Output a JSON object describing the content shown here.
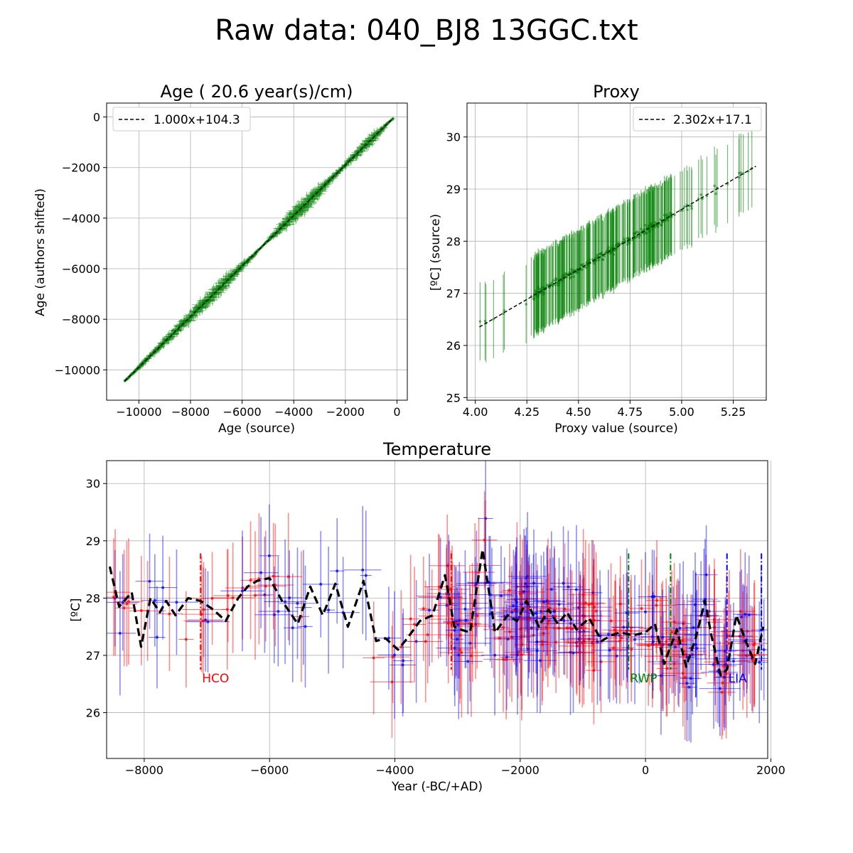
{
  "title": "Raw data: 040_BJ8 13GGC.txt",
  "colors": {
    "age": "#008000",
    "proxy": "#008000",
    "fit": "#000000",
    "temp_a": "#ff0000",
    "temp_b": "#0000ff",
    "hco": "#ff0000",
    "rwp": "#008000",
    "lia": "#0000ff"
  },
  "chart_data": [
    {
      "type": "scatter",
      "title": "Age ( 20.6 year(s)/cm)",
      "xlabel": "Age (source)",
      "ylabel": "Age (authors shifted)",
      "xlim": [
        -11250,
        400
      ],
      "ylim": [
        -11200,
        550
      ],
      "xticks": [
        "-10000",
        "-8000",
        "-6000",
        "-4000",
        "-2000",
        "0"
      ],
      "yticks": [
        "0",
        "-2000",
        "-4000",
        "-6000",
        "-8000",
        "-10000"
      ],
      "legend": "1.000x+104.3",
      "legend_position": "top-left",
      "grid": true,
      "fit": {
        "slope": 1.0,
        "intercept": 104.3
      },
      "series": [
        {
          "x_range": [
            -10550,
            -150
          ],
          "spread_points": [
            [
              -10550,
              80
            ],
            [
              -8600,
              280
            ],
            [
              -6800,
              380
            ],
            [
              -5200,
              60
            ],
            [
              -3800,
              450
            ],
            [
              -2200,
              150
            ],
            [
              -1000,
              300
            ],
            [
              -150,
              50
            ]
          ]
        }
      ]
    },
    {
      "type": "scatter",
      "title": "Proxy",
      "xlabel": "Proxy value (source)",
      "ylabel": "[ºC] (source)",
      "xlim": [
        3.96,
        5.41
      ],
      "ylim": [
        24.95,
        30.65
      ],
      "xticks": [
        "4.00",
        "4.25",
        "4.50",
        "4.75",
        "5.00",
        "5.25"
      ],
      "yticks": [
        "25",
        "26",
        "27",
        "28",
        "29",
        "30"
      ],
      "legend": "2.302x+17.1",
      "legend_position": "top-right",
      "grid": true,
      "fit": {
        "slope": 2.302,
        "intercept": 17.1
      },
      "error_half_width": 0.75,
      "x_range": [
        4.02,
        5.36
      ]
    },
    {
      "type": "line",
      "title": "Temperature",
      "xlabel": "Year (-BC/+AD)",
      "ylabel": "[ºC]",
      "xlim": [
        -8600,
        1950
      ],
      "ylim": [
        25.2,
        30.4
      ],
      "xticks": [
        "-8000",
        "-6000",
        "-4000",
        "-2000",
        "0",
        "2000"
      ],
      "yticks": [
        "26",
        "27",
        "28",
        "29",
        "30"
      ],
      "grid": true,
      "mean_line": {
        "x": [
          -8550,
          -8400,
          -8200,
          -8050,
          -7900,
          -7750,
          -7650,
          -7500,
          -7300,
          -7100,
          -6900,
          -6700,
          -6500,
          -6350,
          -6200,
          -6000,
          -5800,
          -5550,
          -5350,
          -5150,
          -4950,
          -4750,
          -4500,
          -4300,
          -4150,
          -3950,
          -3800,
          -3600,
          -3400,
          -3200,
          -3050,
          -2950,
          -2800,
          -2600,
          -2400,
          -2200,
          -2050,
          -1900,
          -1700,
          -1550,
          -1400,
          -1250,
          -1100,
          -900,
          -700,
          -550,
          -400,
          -200,
          0,
          150,
          300,
          380,
          500,
          650,
          800,
          950,
          1050,
          1200,
          1300,
          1450,
          1600,
          1750,
          1880
        ],
        "y": [
          28.55,
          27.85,
          28.1,
          27.15,
          28.0,
          27.75,
          27.95,
          27.7,
          28.0,
          27.95,
          27.8,
          27.6,
          28.0,
          28.2,
          28.3,
          28.35,
          27.95,
          27.55,
          28.2,
          27.7,
          28.25,
          27.5,
          28.3,
          27.25,
          27.3,
          27.1,
          27.3,
          27.6,
          27.7,
          28.4,
          27.5,
          27.45,
          27.4,
          28.85,
          27.4,
          27.7,
          27.6,
          27.95,
          27.5,
          27.8,
          27.55,
          27.75,
          27.45,
          27.65,
          27.25,
          27.35,
          27.4,
          27.35,
          27.4,
          27.55,
          26.85,
          27.1,
          27.45,
          26.8,
          27.3,
          27.95,
          27.35,
          26.65,
          26.75,
          27.7,
          27.25,
          26.85,
          27.5
        ]
      },
      "annotations": [
        {
          "label": "HCO",
          "x_start": -7100,
          "x_end": -3100,
          "color": "hco"
        },
        {
          "label": "RWP",
          "x_start": -270,
          "x_end": 400,
          "color": "rwp"
        },
        {
          "label": "LIA",
          "x_start": 1300,
          "x_end": 1850,
          "color": "lia"
        }
      ]
    }
  ]
}
